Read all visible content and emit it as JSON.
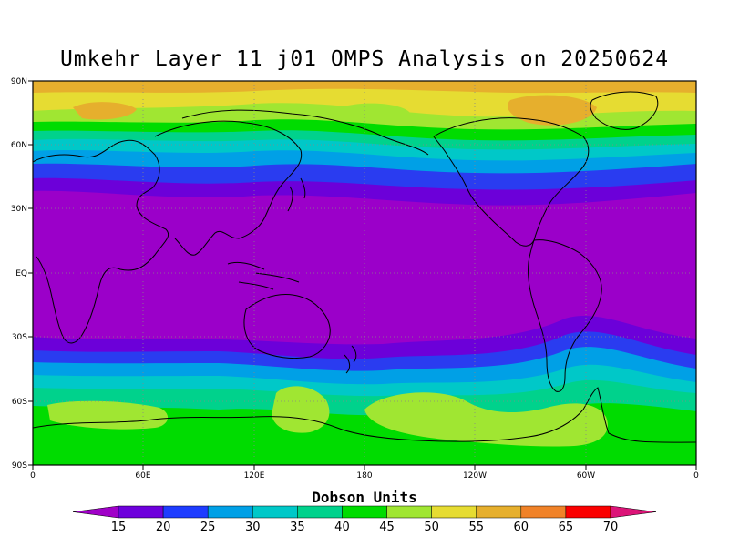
{
  "title": "Umkehr Layer 11 j01 OMPS Analysis on 20250624",
  "lat_labels": [
    "90N",
    "60N",
    "30N",
    "EQ",
    "30S",
    "60S",
    "90S"
  ],
  "lon_labels": [
    "0",
    "60E",
    "120E",
    "180",
    "120W",
    "60W",
    "0"
  ],
  "colorbar": {
    "title": "Dobson Units",
    "levels": [
      "15",
      "20",
      "25",
      "30",
      "35",
      "40",
      "45",
      "50",
      "55",
      "60",
      "65",
      "70"
    ],
    "colors": [
      "#a000c8",
      "#6e00dc",
      "#1e3cff",
      "#00a0e6",
      "#00c8c8",
      "#00d28c",
      "#00dc00",
      "#a0e632",
      "#e6dc32",
      "#e6af2d",
      "#f08228",
      "#fa0000",
      "#dc1478"
    ]
  },
  "band_colors": {
    "15": "#9b00c9",
    "20": "#6c00d9",
    "25": "#2a3cf0",
    "30": "#00a0e6",
    "35": "#00c8c8",
    "40": "#00d28c",
    "45": "#00dc00",
    "50": "#a0e632",
    "55": "#e6dc32",
    "60": "#e6af2d"
  }
}
